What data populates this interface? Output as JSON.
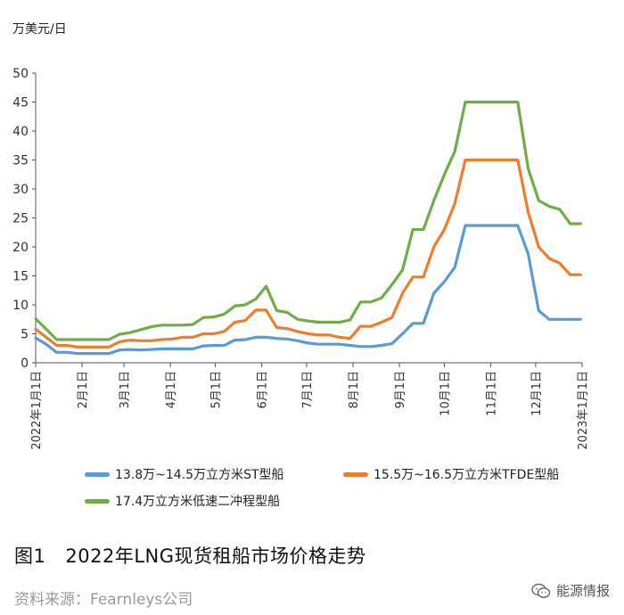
{
  "chart_data": {
    "type": "line",
    "title": "",
    "ylabel": "万美元/日",
    "xlabel": "",
    "ylim": [
      0,
      50
    ],
    "yticks": [
      0,
      5,
      10,
      15,
      20,
      25,
      30,
      35,
      40,
      45,
      50
    ],
    "xlim": [
      "2022-01-01",
      "2023-01-01"
    ],
    "xticks": [
      "2022年1月1日",
      "2月1日",
      "3月1日",
      "4月1日",
      "5月1日",
      "6月1日",
      "7月1日",
      "8月1日",
      "9月1日",
      "10月1日",
      "11月1日",
      "12月1日",
      "2023年1月1日"
    ],
    "legend_position": "bottom",
    "grid": false,
    "series": [
      {
        "name": "13.8万~14.5万立方米ST型船",
        "color": "#5b9bd5",
        "points": [
          [
            "2022-01-01",
            4.3
          ],
          [
            "2022-01-08",
            3.2
          ],
          [
            "2022-01-15",
            1.8
          ],
          [
            "2022-01-22",
            1.8
          ],
          [
            "2022-01-29",
            1.6
          ],
          [
            "2022-02-05",
            1.6
          ],
          [
            "2022-02-12",
            1.6
          ],
          [
            "2022-02-19",
            1.6
          ],
          [
            "2022-02-26",
            2.2
          ],
          [
            "2022-03-05",
            2.3
          ],
          [
            "2022-03-12",
            2.2
          ],
          [
            "2022-03-19",
            2.3
          ],
          [
            "2022-03-26",
            2.4
          ],
          [
            "2022-04-02",
            2.4
          ],
          [
            "2022-04-09",
            2.4
          ],
          [
            "2022-04-16",
            2.4
          ],
          [
            "2022-04-23",
            2.9
          ],
          [
            "2022-04-30",
            3.0
          ],
          [
            "2022-05-07",
            3.0
          ],
          [
            "2022-05-14",
            3.9
          ],
          [
            "2022-05-21",
            4.0
          ],
          [
            "2022-05-28",
            4.4
          ],
          [
            "2022-06-04",
            4.4
          ],
          [
            "2022-06-11",
            4.2
          ],
          [
            "2022-06-18",
            4.1
          ],
          [
            "2022-06-25",
            3.8
          ],
          [
            "2022-07-02",
            3.4
          ],
          [
            "2022-07-09",
            3.2
          ],
          [
            "2022-07-16",
            3.2
          ],
          [
            "2022-07-23",
            3.2
          ],
          [
            "2022-07-30",
            3.0
          ],
          [
            "2022-08-06",
            2.8
          ],
          [
            "2022-08-13",
            2.8
          ],
          [
            "2022-08-20",
            3.0
          ],
          [
            "2022-08-27",
            3.3
          ],
          [
            "2022-09-03",
            5.0
          ],
          [
            "2022-09-10",
            6.8
          ],
          [
            "2022-09-17",
            6.8
          ],
          [
            "2022-09-24",
            12.0
          ],
          [
            "2022-10-01",
            14.0
          ],
          [
            "2022-10-08",
            16.5
          ],
          [
            "2022-10-15",
            23.7
          ],
          [
            "2022-10-22",
            23.7
          ],
          [
            "2022-10-29",
            23.7
          ],
          [
            "2022-11-05",
            23.7
          ],
          [
            "2022-11-12",
            23.7
          ],
          [
            "2022-11-19",
            23.7
          ],
          [
            "2022-11-26",
            18.8
          ],
          [
            "2022-12-03",
            9.0
          ],
          [
            "2022-12-10",
            7.5
          ],
          [
            "2022-12-17",
            7.5
          ],
          [
            "2022-12-24",
            7.5
          ],
          [
            "2022-12-31",
            7.5
          ]
        ]
      },
      {
        "name": "15.5万~16.5万立方米TFDE型船",
        "color": "#ed7d31",
        "points": [
          [
            "2022-01-01",
            5.8
          ],
          [
            "2022-01-08",
            4.4
          ],
          [
            "2022-01-15",
            3.0
          ],
          [
            "2022-01-22",
            3.0
          ],
          [
            "2022-01-29",
            2.7
          ],
          [
            "2022-02-05",
            2.7
          ],
          [
            "2022-02-12",
            2.7
          ],
          [
            "2022-02-19",
            2.7
          ],
          [
            "2022-02-26",
            3.6
          ],
          [
            "2022-03-05",
            3.9
          ],
          [
            "2022-03-12",
            3.8
          ],
          [
            "2022-03-19",
            3.8
          ],
          [
            "2022-03-26",
            4.0
          ],
          [
            "2022-04-02",
            4.1
          ],
          [
            "2022-04-09",
            4.4
          ],
          [
            "2022-04-16",
            4.4
          ],
          [
            "2022-04-23",
            5.0
          ],
          [
            "2022-04-30",
            5.0
          ],
          [
            "2022-05-07",
            5.4
          ],
          [
            "2022-05-14",
            7.0
          ],
          [
            "2022-05-21",
            7.3
          ],
          [
            "2022-05-28",
            9.1
          ],
          [
            "2022-06-04",
            9.1
          ],
          [
            "2022-06-11",
            6.1
          ],
          [
            "2022-06-18",
            5.9
          ],
          [
            "2022-06-25",
            5.4
          ],
          [
            "2022-07-02",
            5.0
          ],
          [
            "2022-07-09",
            4.8
          ],
          [
            "2022-07-16",
            4.8
          ],
          [
            "2022-07-23",
            4.4
          ],
          [
            "2022-07-30",
            4.2
          ],
          [
            "2022-08-06",
            6.3
          ],
          [
            "2022-08-13",
            6.3
          ],
          [
            "2022-08-20",
            7.0
          ],
          [
            "2022-08-27",
            7.8
          ],
          [
            "2022-09-03",
            12.0
          ],
          [
            "2022-09-10",
            14.8
          ],
          [
            "2022-09-17",
            14.8
          ],
          [
            "2022-09-24",
            20.0
          ],
          [
            "2022-10-01",
            23.0
          ],
          [
            "2022-10-08",
            27.5
          ],
          [
            "2022-10-15",
            35.0
          ],
          [
            "2022-10-22",
            35.0
          ],
          [
            "2022-10-29",
            35.0
          ],
          [
            "2022-11-05",
            35.0
          ],
          [
            "2022-11-12",
            35.0
          ],
          [
            "2022-11-19",
            35.0
          ],
          [
            "2022-11-26",
            26.0
          ],
          [
            "2022-12-03",
            20.0
          ],
          [
            "2022-12-10",
            18.0
          ],
          [
            "2022-12-17",
            17.2
          ],
          [
            "2022-12-24",
            15.2
          ],
          [
            "2022-12-31",
            15.2
          ]
        ]
      },
      {
        "name": "17.4万立方米低速二冲程型船",
        "color": "#70ad47",
        "points": [
          [
            "2022-01-01",
            7.6
          ],
          [
            "2022-01-08",
            5.8
          ],
          [
            "2022-01-15",
            4.0
          ],
          [
            "2022-01-22",
            4.0
          ],
          [
            "2022-01-29",
            4.0
          ],
          [
            "2022-02-05",
            4.0
          ],
          [
            "2022-02-12",
            4.0
          ],
          [
            "2022-02-19",
            4.0
          ],
          [
            "2022-02-26",
            4.9
          ],
          [
            "2022-03-05",
            5.2
          ],
          [
            "2022-03-12",
            5.7
          ],
          [
            "2022-03-19",
            6.2
          ],
          [
            "2022-03-26",
            6.5
          ],
          [
            "2022-04-02",
            6.5
          ],
          [
            "2022-04-09",
            6.5
          ],
          [
            "2022-04-16",
            6.6
          ],
          [
            "2022-04-23",
            7.8
          ],
          [
            "2022-04-30",
            7.9
          ],
          [
            "2022-05-07",
            8.4
          ],
          [
            "2022-05-14",
            9.8
          ],
          [
            "2022-05-21",
            10.0
          ],
          [
            "2022-05-28",
            11.0
          ],
          [
            "2022-06-04",
            13.2
          ],
          [
            "2022-06-11",
            9.0
          ],
          [
            "2022-06-18",
            8.7
          ],
          [
            "2022-06-25",
            7.5
          ],
          [
            "2022-07-02",
            7.2
          ],
          [
            "2022-07-09",
            7.0
          ],
          [
            "2022-07-16",
            7.0
          ],
          [
            "2022-07-23",
            7.0
          ],
          [
            "2022-07-30",
            7.4
          ],
          [
            "2022-08-06",
            10.5
          ],
          [
            "2022-08-13",
            10.5
          ],
          [
            "2022-08-20",
            11.2
          ],
          [
            "2022-08-27",
            13.5
          ],
          [
            "2022-09-03",
            16.0
          ],
          [
            "2022-09-10",
            23.0
          ],
          [
            "2022-09-17",
            23.0
          ],
          [
            "2022-09-24",
            28.0
          ],
          [
            "2022-10-01",
            32.5
          ],
          [
            "2022-10-08",
            36.5
          ],
          [
            "2022-10-15",
            45.0
          ],
          [
            "2022-10-22",
            45.0
          ],
          [
            "2022-10-29",
            45.0
          ],
          [
            "2022-11-05",
            45.0
          ],
          [
            "2022-11-12",
            45.0
          ],
          [
            "2022-11-19",
            45.0
          ],
          [
            "2022-11-26",
            33.5
          ],
          [
            "2022-12-03",
            28.0
          ],
          [
            "2022-12-10",
            27.0
          ],
          [
            "2022-12-17",
            26.5
          ],
          [
            "2022-12-24",
            24.0
          ],
          [
            "2022-12-31",
            24.0
          ]
        ]
      }
    ]
  },
  "caption": {
    "number": "图1",
    "text": "2022年LNG现货租船市场价格走势"
  },
  "source": "资料来源：Fearnleys公司",
  "watermark": {
    "text": "能源情报",
    "icon": "wechat-icon"
  }
}
